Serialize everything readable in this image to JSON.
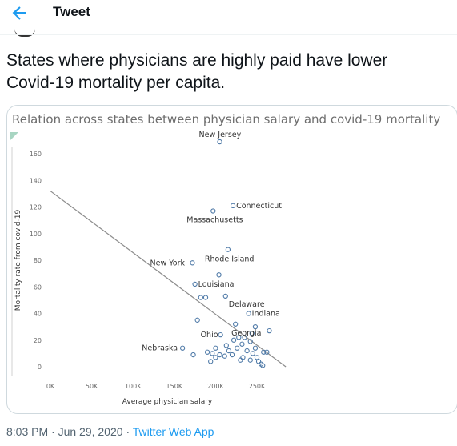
{
  "header": {
    "title": "Tweet"
  },
  "tweet": {
    "text_line1": "States where physicians are highly paid have lower",
    "text_line2": "Covid-19 mortality per capita.",
    "timestamp": "8:03 PM · Jun 29, 2020",
    "separator": "·",
    "source": "Twitter Web App"
  },
  "colors": {
    "accent": "#1d9bf0",
    "point": "#4e79a7",
    "trend": "#8c8c8c"
  },
  "chart_data": {
    "type": "scatter",
    "title": "Relation across states between physician salary and covid-19 mortality",
    "xlabel": "Average physician salary",
    "ylabel": "Mortality rate from covid-19",
    "xlim": [
      0,
      280000
    ],
    "ylim": [
      0,
      170
    ],
    "xticks": [
      0,
      50000,
      100000,
      150000,
      200000,
      250000
    ],
    "xtick_labels": [
      "0K",
      "50K",
      "100K",
      "150K",
      "200K",
      "250K"
    ],
    "yticks": [
      0,
      20,
      40,
      60,
      80,
      100,
      120,
      140,
      160
    ],
    "ytick_labels": [
      "0",
      "20",
      "40",
      "60",
      "80",
      "100",
      "120",
      "140",
      "160"
    ],
    "grid": false,
    "trend": [
      [
        0,
        132
      ],
      [
        285000,
        0
      ]
    ],
    "labeled_points": [
      {
        "name": "New Jersey",
        "x": 205000,
        "y": 169
      },
      {
        "name": "Connecticut",
        "x": 221000,
        "y": 121
      },
      {
        "name": "Massachusetts",
        "x": 197000,
        "y": 117
      },
      {
        "name": "Rhode Island",
        "x": 215000,
        "y": 88
      },
      {
        "name": "New York",
        "x": 172000,
        "y": 78
      },
      {
        "name": "Louisiana",
        "x": 175000,
        "y": 62
      },
      {
        "name": "Delaware",
        "x": 212000,
        "y": 53
      },
      {
        "name": "Indiana",
        "x": 240000,
        "y": 40
      },
      {
        "name": "Georgia",
        "x": 224000,
        "y": 32
      },
      {
        "name": "Ohio",
        "x": 206000,
        "y": 24
      },
      {
        "name": "Nebraska",
        "x": 160000,
        "y": 14
      }
    ],
    "other_points": [
      [
        204000,
        69
      ],
      [
        182000,
        52
      ],
      [
        188000,
        52
      ],
      [
        178000,
        35
      ],
      [
        248000,
        30
      ],
      [
        265000,
        27
      ],
      [
        244000,
        25
      ],
      [
        235000,
        22
      ],
      [
        242000,
        19
      ],
      [
        232000,
        17
      ],
      [
        222000,
        20
      ],
      [
        226000,
        14
      ],
      [
        213000,
        16
      ],
      [
        200000,
        14
      ],
      [
        190000,
        11
      ],
      [
        196000,
        10
      ],
      [
        205000,
        9
      ],
      [
        200000,
        7
      ],
      [
        216000,
        12
      ],
      [
        220000,
        9
      ],
      [
        233000,
        7
      ],
      [
        238000,
        12
      ],
      [
        245000,
        10
      ],
      [
        250000,
        7
      ],
      [
        252000,
        4
      ],
      [
        255000,
        2
      ],
      [
        257000,
        1
      ],
      [
        248000,
        14
      ],
      [
        258000,
        11
      ],
      [
        262000,
        11
      ],
      [
        211000,
        8
      ],
      [
        173000,
        9
      ],
      [
        194000,
        4
      ],
      [
        230000,
        5
      ],
      [
        242000,
        5
      ],
      [
        228000,
        22
      ]
    ]
  }
}
